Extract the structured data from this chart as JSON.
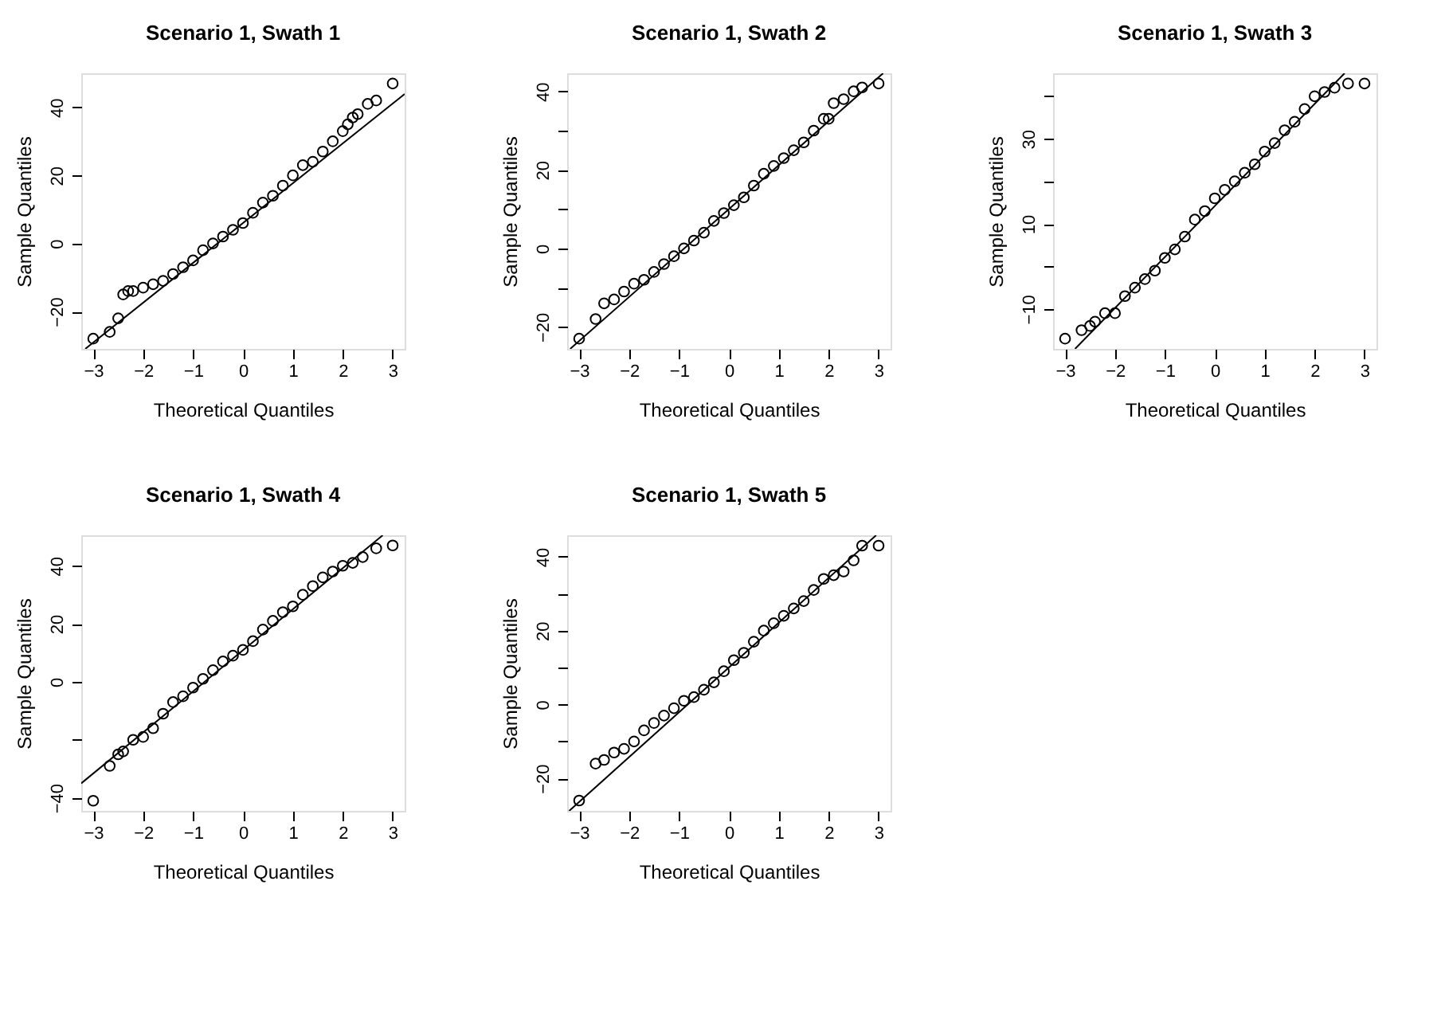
{
  "chart_data": [
    {
      "type": "scatter",
      "title": "Scenario 1, Swath  1",
      "xlabel": "Theoretical Quantiles",
      "ylabel": "Sample Quantiles",
      "marker": "circle",
      "xlim": [
        -3.24,
        3.24
      ],
      "ylim": [
        -31,
        50
      ],
      "xticks": [
        -3,
        -2,
        -1,
        0,
        1,
        2,
        3
      ],
      "yticks": [
        -20,
        0,
        20,
        40
      ],
      "series": [
        {
          "color": "#000000",
          "x": [
            -3.0,
            -2.67,
            -2.5,
            -2.4,
            -2.3,
            -2.2,
            -2.0,
            -1.8,
            -1.6,
            -1.4,
            -1.2,
            -1.0,
            -0.8,
            -0.6,
            -0.4,
            -0.2,
            0,
            0.2,
            0.4,
            0.6,
            0.8,
            1.0,
            1.2,
            1.4,
            1.6,
            1.8,
            2.0,
            2.1,
            2.2,
            2.3,
            2.5,
            2.67,
            3.0
          ],
          "values": [
            -28,
            -26,
            -22,
            -15,
            -14,
            -14,
            -13,
            -12,
            -11,
            -9,
            -7,
            -5,
            -2,
            0,
            2,
            4,
            6,
            9,
            12,
            14,
            17,
            20,
            23,
            24,
            27,
            30,
            33,
            35,
            37,
            38,
            41,
            42,
            47
          ]
        },
        {
          "type": "line",
          "marker": "none",
          "color": "#000000",
          "x": [
            -3.16,
            3.24
          ],
          "values": [
            -31,
            43.9
          ]
        }
      ]
    },
    {
      "type": "scatter",
      "title": "Scenario 1, Swath  2",
      "xlabel": "Theoretical Quantiles",
      "ylabel": "Sample Quantiles",
      "marker": "circle",
      "xlim": [
        -3.24,
        3.24
      ],
      "ylim": [
        -25.6,
        44.6
      ],
      "xticks": [
        -3,
        -2,
        -1,
        0,
        1,
        2,
        3
      ],
      "yticks": [
        -20,
        {
          "value": -10,
          "label": null
        },
        0,
        {
          "value": 10,
          "label": null
        },
        20,
        {
          "value": 30,
          "label": null
        },
        40
      ],
      "series": [
        {
          "color": "#000000",
          "x": [
            -3.0,
            -2.67,
            -2.5,
            -2.3,
            -2.1,
            -1.9,
            -1.7,
            -1.5,
            -1.3,
            -1.1,
            -0.9,
            -0.7,
            -0.5,
            -0.3,
            -0.1,
            0.1,
            0.3,
            0.5,
            0.7,
            0.9,
            1.1,
            1.3,
            1.5,
            1.7,
            1.9,
            2.0,
            2.1,
            2.3,
            2.5,
            2.67,
            3.0
          ],
          "values": [
            -23,
            -18,
            -14,
            -13,
            -11,
            -9,
            -8,
            -6,
            -4,
            -2,
            0,
            2,
            4,
            7,
            9,
            11,
            13,
            16,
            19,
            21,
            23,
            25,
            27,
            30,
            33,
            33,
            37,
            38,
            40,
            41,
            42
          ]
        },
        {
          "type": "line",
          "marker": "none",
          "color": "#000000",
          "x": [
            -3.18,
            3.09
          ],
          "values": [
            -25.6,
            44.6
          ]
        }
      ]
    },
    {
      "type": "scatter",
      "title": "Scenario 1, Swath  3",
      "xlabel": "Theoretical Quantiles",
      "ylabel": "Sample Quantiles",
      "marker": "circle",
      "xlim": [
        -3.24,
        3.24
      ],
      "ylim": [
        -19.4,
        45.4
      ],
      "xticks": [
        -3,
        -2,
        -1,
        0,
        1,
        2,
        3
      ],
      "yticks": [
        -10,
        {
          "value": 0,
          "label": null
        },
        10,
        {
          "value": 20,
          "label": null
        },
        30,
        {
          "value": 40,
          "label": null
        }
      ],
      "series": [
        {
          "color": "#000000",
          "x": [
            -3.0,
            -2.67,
            -2.5,
            -2.4,
            -2.2,
            -2.0,
            -1.8,
            -1.6,
            -1.4,
            -1.2,
            -1.0,
            -0.8,
            -0.6,
            -0.4,
            -0.2,
            0,
            0.2,
            0.4,
            0.6,
            0.8,
            1.0,
            1.2,
            1.4,
            1.6,
            1.8,
            2.0,
            2.2,
            2.4,
            2.67,
            3.0
          ],
          "values": [
            -17,
            -15,
            -14,
            -13,
            -11,
            -11,
            -7,
            -5,
            -3,
            -1,
            2,
            4,
            7,
            11,
            13,
            16,
            18,
            20,
            22,
            24,
            27,
            29,
            32,
            34,
            37,
            40,
            41,
            42,
            43,
            43
          ]
        },
        {
          "type": "line",
          "marker": "none",
          "color": "#000000",
          "x": [
            -2.8,
            2.6
          ],
          "values": [
            -19.4,
            45.4
          ]
        }
      ]
    },
    {
      "type": "scatter",
      "title": "Scenario 1, Swath  4",
      "xlabel": "Theoretical Quantiles",
      "ylabel": "Sample Quantiles",
      "marker": "circle",
      "xlim": [
        -3.24,
        3.24
      ],
      "ylim": [
        -44.5,
        50.5
      ],
      "xticks": [
        -3,
        -2,
        -1,
        0,
        1,
        2,
        3
      ],
      "yticks": [
        -40,
        {
          "value": -20,
          "label": null
        },
        0,
        20,
        40
      ],
      "series": [
        {
          "color": "#000000",
          "x": [
            -3.0,
            -2.67,
            -2.5,
            -2.4,
            -2.2,
            -2.0,
            -1.8,
            -1.6,
            -1.4,
            -1.2,
            -1.0,
            -0.8,
            -0.6,
            -0.4,
            -0.2,
            0,
            0.2,
            0.4,
            0.6,
            0.8,
            1.0,
            1.2,
            1.4,
            1.6,
            1.8,
            2.0,
            2.2,
            2.4,
            2.67,
            3.0
          ],
          "values": [
            -41,
            -29,
            -25,
            -24,
            -20,
            -19,
            -16,
            -11,
            -7,
            -5,
            -2,
            1,
            4,
            7,
            9,
            11,
            14,
            18,
            21,
            24,
            26,
            30,
            33,
            36,
            38,
            40,
            41,
            43,
            46,
            47
          ]
        },
        {
          "type": "line",
          "marker": "none",
          "color": "#000000",
          "x": [
            -3.24,
            2.8
          ],
          "values": [
            -35,
            50.5
          ]
        }
      ]
    },
    {
      "type": "scatter",
      "title": "Scenario 1, Swath  5",
      "xlabel": "Theoretical Quantiles",
      "ylabel": "Sample Quantiles",
      "marker": "circle",
      "xlim": [
        -3.24,
        3.24
      ],
      "ylim": [
        -28.8,
        45.8
      ],
      "xticks": [
        -3,
        -2,
        -1,
        0,
        1,
        2,
        3
      ],
      "yticks": [
        -20,
        {
          "value": -10,
          "label": null
        },
        0,
        {
          "value": 10,
          "label": null
        },
        20,
        {
          "value": 30,
          "label": null
        },
        40
      ],
      "series": [
        {
          "color": "#000000",
          "x": [
            -3.0,
            -2.67,
            -2.5,
            -2.3,
            -2.1,
            -1.9,
            -1.7,
            -1.5,
            -1.3,
            -1.1,
            -0.9,
            -0.7,
            -0.5,
            -0.3,
            -0.1,
            0.1,
            0.3,
            0.5,
            0.7,
            0.9,
            1.1,
            1.3,
            1.5,
            1.7,
            1.9,
            2.1,
            2.3,
            2.5,
            2.67,
            3.0
          ],
          "values": [
            -26,
            -16,
            -15,
            -13,
            -12,
            -10,
            -7,
            -5,
            -3,
            -1,
            1,
            2,
            4,
            6,
            9,
            12,
            14,
            17,
            20,
            22,
            24,
            26,
            28,
            31,
            34,
            35,
            36,
            39,
            43,
            43
          ]
        },
        {
          "type": "line",
          "marker": "none",
          "color": "#000000",
          "x": [
            -3.2,
            2.95
          ],
          "values": [
            -28.8,
            45.8
          ]
        }
      ]
    }
  ]
}
